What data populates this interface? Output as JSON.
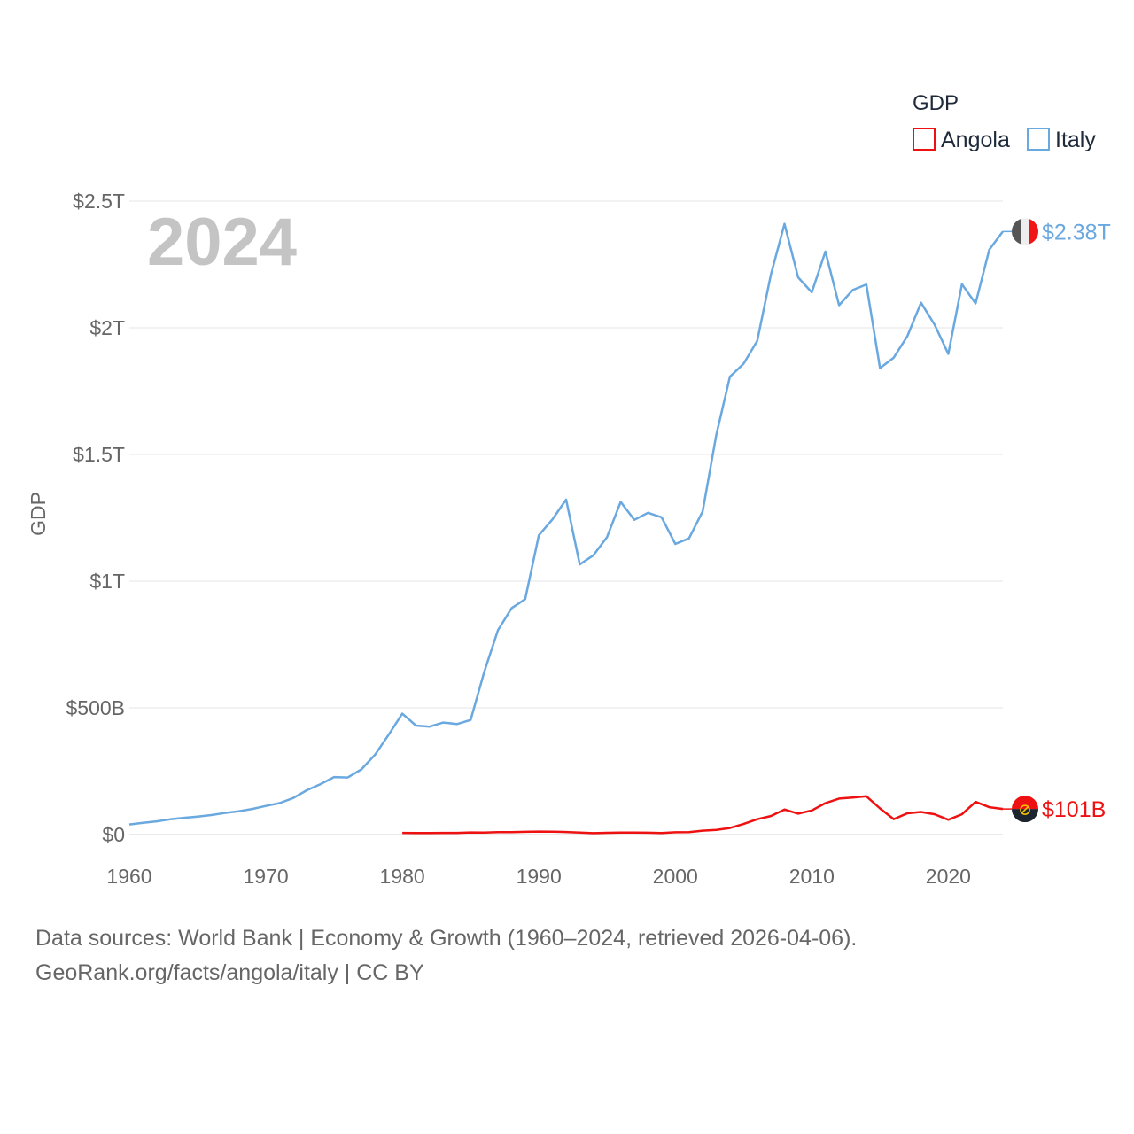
{
  "chart_data": {
    "type": "line",
    "title": "GDP",
    "ylabel": "GDP",
    "xlabel": "",
    "year_watermark": "2024",
    "xlim": [
      1960,
      2024
    ],
    "ylim": [
      0,
      2500000000000
    ],
    "x_ticks": [
      {
        "value": 1960,
        "label": "1960"
      },
      {
        "value": 1970,
        "label": "1970"
      },
      {
        "value": 1980,
        "label": "1980"
      },
      {
        "value": 1990,
        "label": "1990"
      },
      {
        "value": 2000,
        "label": "2000"
      },
      {
        "value": 2010,
        "label": "2010"
      },
      {
        "value": 2020,
        "label": "2020"
      }
    ],
    "y_ticks": [
      {
        "value": 0,
        "label": "$0"
      },
      {
        "value": 500000000000,
        "label": "$500B"
      },
      {
        "value": 1000000000000,
        "label": "$1T"
      },
      {
        "value": 1500000000000,
        "label": "$1.5T"
      },
      {
        "value": 2000000000000,
        "label": "$2T"
      },
      {
        "value": 2500000000000,
        "label": "$2.5T"
      }
    ],
    "grid": true,
    "legend": {
      "title": "GDP",
      "position": "top-right"
    },
    "series": [
      {
        "name": "Angola",
        "color": "#ee1111",
        "end_label": "$101B",
        "flag": "angola-flag",
        "x": [
          1980,
          1981,
          1982,
          1983,
          1984,
          1985,
          1986,
          1987,
          1988,
          1989,
          1990,
          1991,
          1992,
          1993,
          1994,
          1995,
          1996,
          1997,
          1998,
          1999,
          2000,
          2001,
          2002,
          2003,
          2004,
          2005,
          2006,
          2007,
          2008,
          2009,
          2010,
          2011,
          2012,
          2013,
          2014,
          2015,
          2016,
          2017,
          2018,
          2019,
          2020,
          2021,
          2022,
          2023,
          2024
        ],
        "values": [
          6600000000.0,
          6100000000.0,
          6200000000.0,
          6500000000.0,
          6800000000.0,
          8500000000.0,
          8000000000.0,
          9500000000.0,
          9800000000.0,
          11000000000.0,
          12000000000.0,
          11500000000.0,
          10000000000.0,
          8000000000.0,
          5500000000.0,
          7000000000.0,
          8000000000.0,
          8000000000.0,
          7500000000.0,
          6200000000.0,
          9100000000.0,
          9400000000.0,
          15300000000.0,
          18500000000.0,
          25800000000.0,
          41500000000.0,
          60600000000.0,
          73000000000.0,
          99000000000.0,
          82500000000.0,
          95000000000.0,
          124000000000.0,
          142000000000.0,
          146000000000.0,
          151000000000.0,
          103000000000.0,
          61000000000.0,
          84000000000.0,
          89000000000.0,
          80000000000.0,
          58500000000.0,
          80000000000.0,
          129000000000.0,
          108000000000.0,
          101000000000.0
        ]
      },
      {
        "name": "Italy",
        "color": "#6aa8e0",
        "end_label": "$2.38T",
        "flag": "italy-flag",
        "x": [
          1960,
          1961,
          1962,
          1963,
          1964,
          1965,
          1966,
          1967,
          1968,
          1969,
          1970,
          1971,
          1972,
          1973,
          1974,
          1975,
          1976,
          1977,
          1978,
          1979,
          1980,
          1981,
          1982,
          1983,
          1984,
          1985,
          1986,
          1987,
          1988,
          1989,
          1990,
          1991,
          1992,
          1993,
          1994,
          1995,
          1996,
          1997,
          1998,
          1999,
          2000,
          2001,
          2002,
          2003,
          2004,
          2005,
          2006,
          2007,
          2008,
          2009,
          2010,
          2011,
          2012,
          2013,
          2014,
          2015,
          2016,
          2017,
          2018,
          2019,
          2020,
          2021,
          2022,
          2023,
          2024
        ],
        "values": [
          40000000000.0,
          46000000000.0,
          52000000000.0,
          60000000000.0,
          66000000000.0,
          71000000000.0,
          77000000000.0,
          85000000000.0,
          92000000000.0,
          101000000000.0,
          113000000000.0,
          124000000000.0,
          144000000000.0,
          175000000000.0,
          199000000000.0,
          227000000000.0,
          225000000000.0,
          257000000000.0,
          315000000000.0,
          394000000000.0,
          477000000000.0,
          430000000000.0,
          426000000000.0,
          442000000000.0,
          436000000000.0,
          452000000000.0,
          642000000000.0,
          806000000000.0,
          893000000000.0,
          929000000000.0,
          1181000000000.0,
          1244000000000.0,
          1322000000000.0,
          1066000000000.0,
          1102000000000.0,
          1174000000000.0,
          1313000000000.0,
          1242000000000.0,
          1270000000000.0,
          1252000000000.0,
          1147000000000.0,
          1169000000000.0,
          1275000000000.0,
          1577000000000.0,
          1807000000000.0,
          1858000000000.0,
          1948000000000.0,
          2209000000000.0,
          2410000000000.0,
          2199000000000.0,
          2140000000000.0,
          2301000000000.0,
          2089000000000.0,
          2149000000000.0,
          2171000000000.0,
          1841000000000.0,
          1882000000000.0,
          1967000000000.0,
          2099000000000.0,
          2012000000000.0,
          1897000000000.0,
          2172000000000.0,
          2096000000000.0,
          2308000000000.0,
          2380000000000.0
        ]
      }
    ]
  },
  "footer": {
    "line1": "Data sources: World Bank | Economy & Growth (1960–2024, retrieved 2026-04-06).",
    "line2": "GeoRank.org/facts/angola/italy | CC BY"
  }
}
